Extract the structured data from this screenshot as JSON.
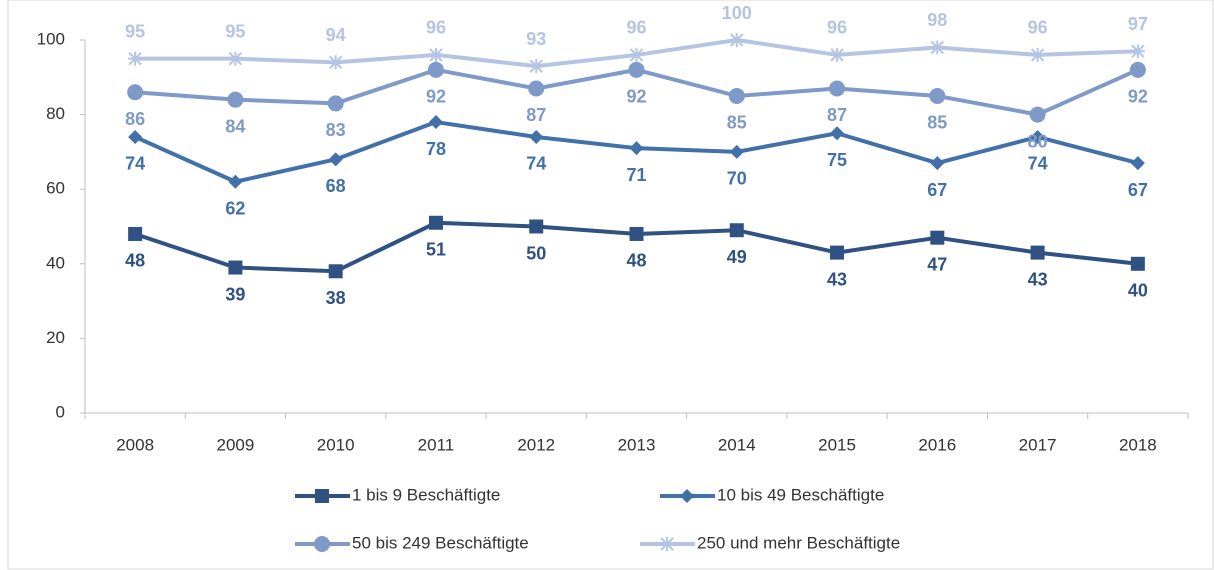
{
  "chart_data": {
    "type": "line",
    "categories": [
      "2008",
      "2009",
      "2010",
      "2011",
      "2012",
      "2013",
      "2014",
      "2015",
      "2016",
      "2017",
      "2018"
    ],
    "series": [
      {
        "name": "1 bis 9 Beschäftigte",
        "color": "#2f5283",
        "marker": "square",
        "label_position": "below",
        "values": [
          48,
          39,
          38,
          51,
          50,
          48,
          49,
          43,
          47,
          43,
          40
        ]
      },
      {
        "name": "10 bis 49 Beschäftigte",
        "color": "#4270a8",
        "marker": "diamond",
        "label_position": "below",
        "values": [
          74,
          62,
          68,
          78,
          74,
          71,
          70,
          75,
          67,
          74,
          67
        ]
      },
      {
        "name": "50 bis 249 Beschäftigte",
        "color": "#7f9ac8",
        "marker": "circle",
        "label_position": "below",
        "values": [
          86,
          84,
          83,
          92,
          87,
          92,
          85,
          87,
          85,
          80,
          92
        ]
      },
      {
        "name": "250 und mehr Beschäftigte",
        "color": "#b5c4e2",
        "marker": "star",
        "label_position": "above",
        "values": [
          95,
          95,
          94,
          96,
          93,
          96,
          100,
          96,
          98,
          96,
          97
        ]
      }
    ],
    "ylim": [
      0,
      100
    ],
    "yticks": [
      0,
      20,
      40,
      60,
      80,
      100
    ],
    "grid": false,
    "legend": "bottom"
  }
}
